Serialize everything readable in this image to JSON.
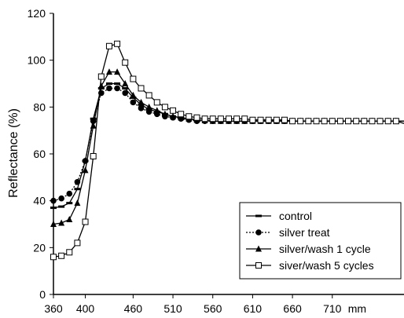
{
  "chart_data": {
    "type": "line",
    "title": "",
    "xlabel": "",
    "ylabel": "Reflectance (%)",
    "x_unit_suffix": "mm",
    "xlim": [
      360,
      800
    ],
    "ylim": [
      0,
      120
    ],
    "xticks": [
      360,
      400,
      460,
      510,
      560,
      610,
      660,
      710
    ],
    "yticks": [
      0,
      20,
      40,
      60,
      80,
      100,
      120
    ],
    "grid": false,
    "legend_position": "lower-right",
    "x": [
      360,
      370,
      380,
      390,
      400,
      410,
      420,
      430,
      440,
      450,
      460,
      470,
      480,
      490,
      500,
      510,
      520,
      530,
      540,
      550,
      560,
      570,
      580,
      590,
      600,
      610,
      620,
      630,
      640,
      650,
      660,
      670,
      680,
      690,
      700,
      710,
      720,
      730,
      740,
      750,
      760,
      770,
      780,
      790,
      800
    ],
    "series": [
      {
        "name": "control",
        "marker": "dash",
        "line": "solid",
        "color": "#000000",
        "values": [
          37,
          37.5,
          39,
          45,
          57,
          75,
          88,
          90,
          90,
          88,
          84,
          81,
          79,
          78,
          77,
          76,
          75.5,
          75,
          74.5,
          74.3,
          74,
          74,
          74,
          74,
          74,
          74,
          74,
          74,
          74,
          74,
          74,
          74,
          74,
          74,
          74,
          74,
          74,
          74,
          74,
          74,
          74,
          74,
          74,
          74,
          74
        ]
      },
      {
        "name": "silver treat",
        "marker": "circle",
        "line": "dotted",
        "color": "#000000",
        "values": [
          40,
          41,
          43,
          48,
          57,
          74,
          86,
          88,
          88,
          86,
          82,
          79.5,
          78,
          77,
          76,
          75.5,
          75,
          74.5,
          74,
          74,
          74,
          74,
          74,
          74,
          74,
          74,
          74,
          74,
          74,
          74,
          74,
          74,
          74,
          74,
          74,
          74,
          74,
          74,
          74,
          74,
          74,
          74,
          74,
          74,
          74
        ]
      },
      {
        "name": "silver/wash 1 cycle",
        "marker": "triangle",
        "line": "solid",
        "color": "#000000",
        "values": [
          30,
          30.5,
          32,
          39,
          53,
          72,
          89,
          95,
          95,
          90,
          85,
          82,
          80,
          78.5,
          77,
          76,
          75.5,
          75,
          74.5,
          74.3,
          74,
          74,
          74,
          74,
          74,
          74,
          74,
          74,
          74,
          74,
          74,
          74,
          74,
          74,
          74,
          74,
          74,
          74,
          74,
          74,
          74,
          74,
          74,
          74,
          74
        ]
      },
      {
        "name": "siver/wash 5 cycles",
        "marker": "square",
        "line": "solid",
        "color": "#000000",
        "values": [
          16,
          16.5,
          18,
          22,
          31,
          59,
          93,
          106,
          107,
          99,
          92,
          88,
          85,
          82,
          80,
          78.5,
          77,
          76,
          75.5,
          75,
          75,
          75,
          75,
          75,
          75,
          74.5,
          74.5,
          74.5,
          74.5,
          74.5,
          74,
          74,
          74,
          74,
          74,
          74,
          74,
          74,
          74,
          74,
          74,
          74,
          74,
          74,
          73
        ]
      }
    ]
  }
}
